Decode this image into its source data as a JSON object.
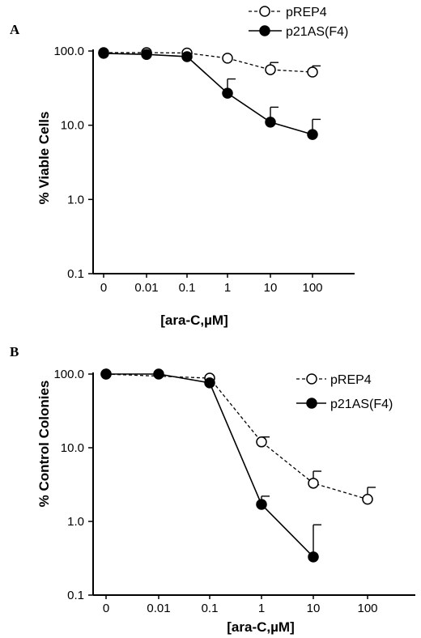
{
  "chart_data": [
    {
      "panel_label": "A",
      "type": "line",
      "y_scale": "log",
      "ylim": [
        0.1,
        100
      ],
      "categories": [
        "0",
        "0.01",
        "0.1",
        "1",
        "10",
        "100"
      ],
      "y_tick_labels": [
        "100.0",
        "10.0",
        "1.0",
        "0.1"
      ],
      "xlabel": "[ara-C,µM]",
      "ylabel": "% Viable Cells",
      "legend": "top-right",
      "series": [
        {
          "name": "pREP4",
          "marker": "open-circle",
          "line": "dashed",
          "values": [
            95,
            95,
            94,
            80,
            56,
            52
          ],
          "error_up": [
            null,
            null,
            null,
            null,
            70,
            63
          ]
        },
        {
          "name": "p21AS(F4)",
          "marker": "filled-circle",
          "line": "solid",
          "values": [
            93,
            90,
            84,
            27,
            11,
            7.5
          ],
          "error_up": [
            null,
            null,
            null,
            42,
            17.5,
            12
          ]
        }
      ]
    },
    {
      "panel_label": "B",
      "type": "line",
      "y_scale": "log",
      "ylim": [
        0.1,
        100
      ],
      "categories": [
        "0",
        "0.01",
        "0.1",
        "1",
        "10",
        "100"
      ],
      "y_tick_labels": [
        "100.0",
        "10.0",
        "1.0",
        "0.1"
      ],
      "xlabel": "[ara-C,µM]",
      "ylabel": "% Control Colonies",
      "legend": "right",
      "series": [
        {
          "name": "pREP4",
          "marker": "open-circle",
          "line": "dashed",
          "values": [
            100,
            null,
            88,
            12,
            3.3,
            2.0
          ],
          "error_up": [
            null,
            null,
            null,
            14,
            4.8,
            2.9
          ]
        },
        {
          "name": "p21AS(F4)",
          "marker": "filled-circle",
          "line": "solid",
          "values": [
            100,
            100,
            76,
            1.7,
            0.33,
            null
          ],
          "error_up": [
            null,
            null,
            null,
            2.2,
            0.9,
            null
          ]
        }
      ]
    }
  ]
}
